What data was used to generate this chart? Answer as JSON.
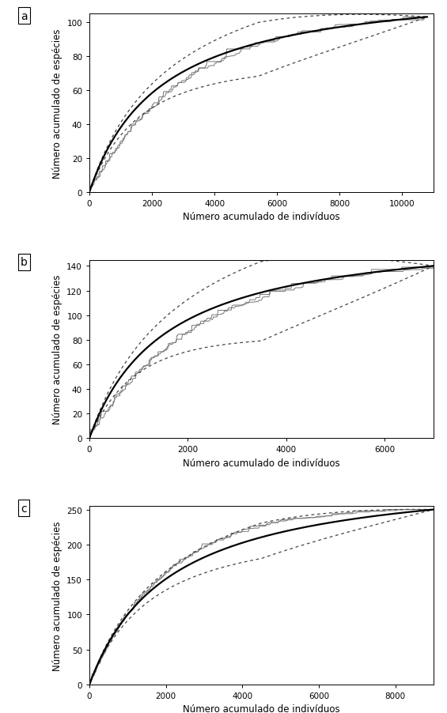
{
  "panels": [
    {
      "label": "a",
      "xlim": [
        0,
        11000
      ],
      "ylim": [
        0,
        105
      ],
      "yticks": [
        0,
        20,
        40,
        60,
        80,
        100
      ],
      "xticks": [
        0,
        2000,
        4000,
        6000,
        8000,
        10000
      ],
      "S": 103,
      "N": 10800,
      "clench_a": 0.045,
      "ci_spread": 0.13,
      "ci_skew": 0.3,
      "raw_alpha": 3.5,
      "raw_noise": 0.015
    },
    {
      "label": "b",
      "xlim": [
        0,
        7000
      ],
      "ylim": [
        0,
        145
      ],
      "yticks": [
        0,
        20,
        40,
        60,
        80,
        100,
        120,
        140
      ],
      "xticks": [
        0,
        2000,
        4000,
        6000
      ],
      "S": 140,
      "N": 7000,
      "clench_a": 0.09,
      "ci_spread": 0.2,
      "ci_skew": 0.25,
      "raw_alpha": 3.2,
      "raw_noise": 0.018
    },
    {
      "label": "c",
      "xlim": [
        0,
        9000
      ],
      "ylim": [
        0,
        255
      ],
      "yticks": [
        0,
        50,
        100,
        150,
        200,
        250
      ],
      "xticks": [
        0,
        2000,
        4000,
        6000,
        8000
      ],
      "S": 250,
      "N": 9000,
      "clench_a": 0.12,
      "ci_spread": 0.09,
      "ci_skew": 0.2,
      "raw_alpha": 4.5,
      "raw_noise": 0.01
    }
  ],
  "xlabel": "Número acumulado de indivíduos",
  "ylabel": "Número acumulado de espécies",
  "mean_color": "#000000",
  "ci_color": "#444444",
  "raw_color": "#777777",
  "mean_lw": 1.6,
  "ci_lw": 0.9,
  "raw_lw": 0.7,
  "bg_color": "#ffffff",
  "label_fontsize": 8.5,
  "tick_fontsize": 7.5,
  "figsize": [
    5.65,
    9.03
  ],
  "dpi": 100
}
